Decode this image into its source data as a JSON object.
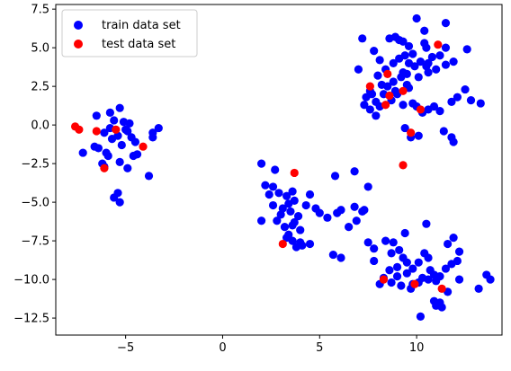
{
  "chart_data": {
    "type": "scatter",
    "title": "",
    "xlabel": "",
    "ylabel": "",
    "xlim": [
      -8.6,
      14.4
    ],
    "ylim": [
      -13.6,
      7.8
    ],
    "xticks": [
      -5,
      0,
      5,
      10
    ],
    "yticks": [
      -12.5,
      -10.0,
      -7.5,
      -5.0,
      -2.5,
      0.0,
      2.5,
      5.0,
      7.5
    ],
    "xtick_labels": [
      "−5",
      "0",
      "5",
      "10"
    ],
    "ytick_labels": [
      "−12.5",
      "−10.0",
      "−7.5",
      "−5.0",
      "−2.5",
      "0.0",
      "2.5",
      "5.0",
      "7.5"
    ],
    "grid": false,
    "legend_position": "upper-left",
    "series": [
      {
        "name": "train data set",
        "color": "#0000ff",
        "points": [
          [
            -6.5,
            0.6
          ],
          [
            -5.8,
            0.8
          ],
          [
            -5.3,
            1.1
          ],
          [
            -5.6,
            0.3
          ],
          [
            -5.1,
            0.2
          ],
          [
            -6.1,
            -0.5
          ],
          [
            -5.7,
            -0.9
          ],
          [
            -5.4,
            -0.7
          ],
          [
            -4.9,
            -0.4
          ],
          [
            -4.7,
            -0.8
          ],
          [
            -4.5,
            -1.1
          ],
          [
            -5.2,
            -1.3
          ],
          [
            -6.0,
            -1.8
          ],
          [
            -6.6,
            -1.4
          ],
          [
            -7.2,
            -1.8
          ],
          [
            -5.3,
            -2.4
          ],
          [
            -4.9,
            -2.8
          ],
          [
            -6.1,
            -2.7
          ],
          [
            -4.6,
            -2.0
          ],
          [
            -4.4,
            -1.9
          ],
          [
            -3.8,
            -3.3
          ],
          [
            -3.6,
            -0.5
          ],
          [
            -3.3,
            -0.2
          ],
          [
            -3.6,
            -0.8
          ],
          [
            -5.6,
            -4.7
          ],
          [
            -5.4,
            -4.4
          ],
          [
            -5.3,
            -5.0
          ],
          [
            -6.4,
            -1.5
          ],
          [
            -5.9,
            -2.0
          ],
          [
            -4.8,
            0.1
          ],
          [
            -5.0,
            -0.3
          ],
          [
            -6.2,
            -2.5
          ],
          [
            -5.8,
            -0.2
          ],
          [
            7.2,
            5.6
          ],
          [
            7.8,
            4.8
          ],
          [
            8.1,
            4.2
          ],
          [
            8.4,
            3.6
          ],
          [
            8.0,
            3.2
          ],
          [
            7.6,
            2.2
          ],
          [
            7.4,
            1.8
          ],
          [
            7.9,
            1.5
          ],
          [
            8.3,
            2.0
          ],
          [
            8.5,
            2.5
          ],
          [
            8.8,
            2.8
          ],
          [
            9.2,
            3.1
          ],
          [
            9.5,
            2.6
          ],
          [
            9.0,
            2.0
          ],
          [
            8.7,
            1.6
          ],
          [
            9.3,
            1.3
          ],
          [
            9.8,
            1.4
          ],
          [
            10.0,
            1.2
          ],
          [
            10.3,
            0.8
          ],
          [
            10.6,
            1.0
          ],
          [
            10.9,
            1.2
          ],
          [
            11.2,
            0.9
          ],
          [
            11.8,
            1.5
          ],
          [
            12.1,
            1.8
          ],
          [
            12.5,
            2.3
          ],
          [
            12.8,
            1.6
          ],
          [
            13.3,
            1.4
          ],
          [
            12.6,
            4.9
          ],
          [
            11.5,
            3.9
          ],
          [
            11.0,
            3.6
          ],
          [
            10.5,
            3.8
          ],
          [
            10.2,
            4.1
          ],
          [
            9.9,
            3.8
          ],
          [
            9.6,
            4.0
          ],
          [
            9.4,
            4.5
          ],
          [
            9.1,
            4.3
          ],
          [
            8.9,
            5.7
          ],
          [
            9.3,
            5.4
          ],
          [
            9.6,
            5.1
          ],
          [
            9.8,
            4.6
          ],
          [
            10.0,
            6.9
          ],
          [
            10.4,
            6.1
          ],
          [
            10.5,
            5.0
          ],
          [
            10.8,
            4.4
          ],
          [
            11.2,
            4.5
          ],
          [
            11.5,
            5.0
          ],
          [
            11.9,
            4.1
          ],
          [
            10.6,
            3.4
          ],
          [
            10.1,
            3.1
          ],
          [
            9.5,
            3.3
          ],
          [
            8.9,
            2.2
          ],
          [
            8.1,
            1.2
          ],
          [
            7.6,
            1.0
          ],
          [
            7.3,
            1.3
          ],
          [
            7.9,
            0.6
          ],
          [
            9.4,
            -0.2
          ],
          [
            9.7,
            -0.8
          ],
          [
            10.1,
            -0.7
          ],
          [
            11.4,
            -0.4
          ],
          [
            11.8,
            -0.8
          ],
          [
            11.9,
            -1.1
          ],
          [
            7.0,
            3.6
          ],
          [
            8.6,
            5.6
          ],
          [
            9.1,
            5.5
          ],
          [
            10.6,
            4.0
          ],
          [
            9.3,
            3.4
          ],
          [
            8.2,
            2.6
          ],
          [
            7.7,
            2.0
          ],
          [
            11.5,
            6.6
          ],
          [
            10.4,
            5.3
          ],
          [
            8.8,
            4.0
          ],
          [
            9.6,
            2.4
          ],
          [
            2.0,
            -2.5
          ],
          [
            2.7,
            -2.9
          ],
          [
            2.2,
            -3.9
          ],
          [
            2.6,
            -4.0
          ],
          [
            2.4,
            -4.5
          ],
          [
            2.9,
            -4.4
          ],
          [
            3.3,
            -4.6
          ],
          [
            3.6,
            -4.3
          ],
          [
            3.7,
            -4.9
          ],
          [
            3.4,
            -5.1
          ],
          [
            3.1,
            -5.4
          ],
          [
            2.6,
            -5.2
          ],
          [
            3.0,
            -5.8
          ],
          [
            3.5,
            -5.6
          ],
          [
            3.9,
            -5.9
          ],
          [
            4.3,
            -5.2
          ],
          [
            4.5,
            -4.5
          ],
          [
            4.8,
            -5.4
          ],
          [
            5.0,
            -5.7
          ],
          [
            5.4,
            -6.0
          ],
          [
            5.9,
            -5.7
          ],
          [
            6.1,
            -5.5
          ],
          [
            6.8,
            -5.3
          ],
          [
            6.9,
            -6.2
          ],
          [
            7.2,
            -5.6
          ],
          [
            7.3,
            -5.5
          ],
          [
            5.8,
            -3.3
          ],
          [
            6.8,
            -3.0
          ],
          [
            7.5,
            -4.0
          ],
          [
            6.5,
            -6.6
          ],
          [
            2.0,
            -6.2
          ],
          [
            2.8,
            -6.2
          ],
          [
            3.2,
            -6.6
          ],
          [
            3.6,
            -6.5
          ],
          [
            4.0,
            -6.8
          ],
          [
            3.4,
            -7.1
          ],
          [
            3.6,
            -7.5
          ],
          [
            4.0,
            -7.6
          ],
          [
            4.5,
            -7.7
          ],
          [
            3.8,
            -7.9
          ],
          [
            3.3,
            -7.3
          ],
          [
            5.7,
            -8.4
          ],
          [
            6.1,
            -8.6
          ],
          [
            3.7,
            -6.3
          ],
          [
            4.1,
            -7.8
          ],
          [
            7.5,
            -7.6
          ],
          [
            7.8,
            -8.0
          ],
          [
            7.8,
            -8.8
          ],
          [
            8.4,
            -7.5
          ],
          [
            8.8,
            -7.6
          ],
          [
            8.7,
            -8.3
          ],
          [
            9.1,
            -8.1
          ],
          [
            9.3,
            -8.6
          ],
          [
            9.5,
            -8.9
          ],
          [
            9.0,
            -9.2
          ],
          [
            8.6,
            -9.4
          ],
          [
            9.0,
            -9.8
          ],
          [
            9.5,
            -9.6
          ],
          [
            9.8,
            -9.3
          ],
          [
            10.1,
            -8.9
          ],
          [
            10.4,
            -8.3
          ],
          [
            10.6,
            -8.6
          ],
          [
            10.7,
            -9.4
          ],
          [
            10.3,
            -9.9
          ],
          [
            10.6,
            -10.0
          ],
          [
            11.0,
            -10.1
          ],
          [
            11.2,
            -9.8
          ],
          [
            11.5,
            -9.3
          ],
          [
            11.8,
            -9.0
          ],
          [
            12.2,
            -10.0
          ],
          [
            11.6,
            -10.8
          ],
          [
            11.2,
            -11.5
          ],
          [
            10.9,
            -11.4
          ],
          [
            11.0,
            -11.7
          ],
          [
            11.3,
            -11.8
          ],
          [
            10.2,
            -12.4
          ],
          [
            8.7,
            -10.2
          ],
          [
            9.2,
            -10.4
          ],
          [
            9.8,
            -10.3
          ],
          [
            8.1,
            -10.3
          ],
          [
            13.2,
            -10.6
          ],
          [
            13.6,
            -9.7
          ],
          [
            13.8,
            -10.0
          ],
          [
            11.6,
            -7.7
          ],
          [
            12.2,
            -8.2
          ],
          [
            11.9,
            -7.3
          ],
          [
            10.5,
            -6.4
          ],
          [
            9.4,
            -7.0
          ],
          [
            10.1,
            -10.2
          ],
          [
            8.3,
            -9.9
          ],
          [
            9.7,
            -10.6
          ],
          [
            12.1,
            -8.8
          ],
          [
            10.9,
            -9.7
          ]
        ]
      },
      {
        "name": "test data set",
        "color": "#ff0000",
        "points": [
          [
            -7.6,
            -0.1
          ],
          [
            -7.4,
            -0.3
          ],
          [
            -6.5,
            -0.4
          ],
          [
            -5.5,
            -0.3
          ],
          [
            -4.1,
            -1.4
          ],
          [
            -6.1,
            -2.8
          ],
          [
            3.7,
            -3.1
          ],
          [
            3.1,
            -7.7
          ],
          [
            8.3,
            -10.0
          ],
          [
            9.9,
            -10.3
          ],
          [
            11.3,
            -10.6
          ],
          [
            7.6,
            2.5
          ],
          [
            8.4,
            1.3
          ],
          [
            8.6,
            1.9
          ],
          [
            8.5,
            3.3
          ],
          [
            9.3,
            2.2
          ],
          [
            10.2,
            1.0
          ],
          [
            9.7,
            -0.5
          ],
          [
            9.3,
            -2.6
          ],
          [
            11.1,
            5.2
          ]
        ]
      }
    ]
  }
}
